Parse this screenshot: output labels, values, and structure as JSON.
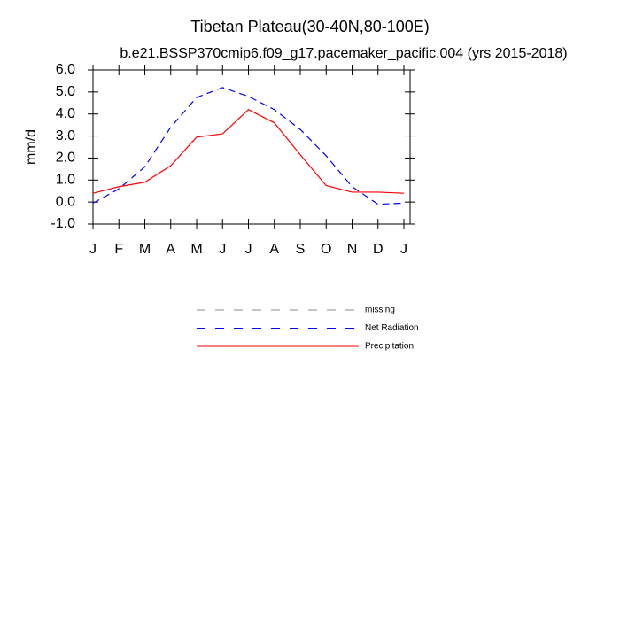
{
  "chart_data": {
    "type": "line",
    "title": "Tibetan Plateau(30-40N,80-100E)",
    "subtitle": "b.e21.BSSP370cmip6.f09_g17.pacemaker_pacific.004 (yrs 2015-2018)",
    "y_label": "mm/d",
    "categories": [
      "J",
      "F",
      "M",
      "A",
      "M",
      "J",
      "J",
      "A",
      "S",
      "O",
      "N",
      "D",
      "J"
    ],
    "series": [
      {
        "name": "missing",
        "color": "#888888",
        "line_style": "dashed",
        "values": [
          null,
          null,
          null,
          null,
          null,
          null,
          null,
          null,
          null,
          null,
          null,
          null,
          null
        ]
      },
      {
        "name": "Net Radiation",
        "color": "#0000ff",
        "line_style": "dashed",
        "values": [
          -0.05,
          0.6,
          1.6,
          3.4,
          4.75,
          5.2,
          4.8,
          4.2,
          3.3,
          2.1,
          0.7,
          -0.1,
          -0.05
        ]
      },
      {
        "name": "Precipitation",
        "color": "#ff0000",
        "line_style": "solid",
        "values": [
          0.4,
          0.7,
          0.9,
          1.65,
          2.95,
          3.1,
          4.2,
          3.6,
          2.15,
          0.75,
          0.45,
          0.45,
          0.4
        ]
      }
    ],
    "ylim": [
      -1,
      6
    ],
    "yticks": [
      {
        "value": -1,
        "label": "-1.0"
      },
      {
        "value": 0,
        "label": "0.0"
      },
      {
        "value": 1,
        "label": "1.0"
      },
      {
        "value": 2,
        "label": "2.0"
      },
      {
        "value": 3,
        "label": "3.0"
      },
      {
        "value": 4,
        "label": "4.0"
      },
      {
        "value": 5,
        "label": "5.0"
      },
      {
        "value": 6,
        "label": "6.0"
      }
    ],
    "grid": false
  }
}
